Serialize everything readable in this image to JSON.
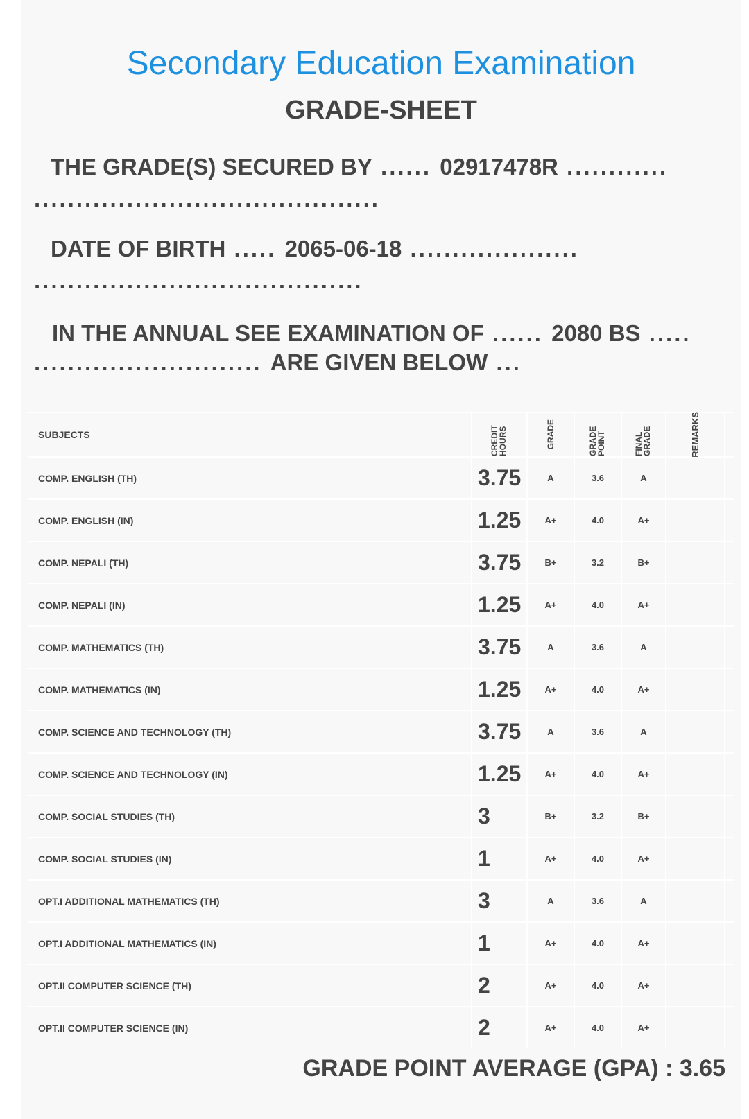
{
  "header": {
    "title": "Secondary Education Examination",
    "subtitle": "GRADE-SHEET"
  },
  "info": {
    "secured_by_label": "THE GRADE(S) SECURED BY",
    "secured_by_value": "02917478R",
    "dob_label": "DATE OF BIRTH",
    "dob_value": "2065-06-18",
    "exam_label": "IN THE ANNUAL SEE EXAMINATION OF",
    "exam_value": "2080 BS",
    "given_below": "ARE GIVEN BELOW"
  },
  "table": {
    "headers": {
      "subjects": "SUBJECTS",
      "credit_hours": "CREDIT HOURS",
      "grade": "GRADE",
      "grade_point": "GRADE POINT",
      "final_grade": "FINAL GRADE",
      "remarks": "REMARKS"
    },
    "rows": [
      {
        "subject": "COMP. ENGLISH (TH)",
        "credit": "3.75",
        "grade": "A",
        "gp": "3.6",
        "final": "A"
      },
      {
        "subject": "COMP. ENGLISH (IN)",
        "credit": "1.25",
        "grade": "A+",
        "gp": "4.0",
        "final": "A+"
      },
      {
        "subject": "COMP. NEPALI (TH)",
        "credit": "3.75",
        "grade": "B+",
        "gp": "3.2",
        "final": "B+"
      },
      {
        "subject": "COMP. NEPALI (IN)",
        "credit": "1.25",
        "grade": "A+",
        "gp": "4.0",
        "final": "A+"
      },
      {
        "subject": "COMP. MATHEMATICS (TH)",
        "credit": "3.75",
        "grade": "A",
        "gp": "3.6",
        "final": "A"
      },
      {
        "subject": "COMP. MATHEMATICS (IN)",
        "credit": "1.25",
        "grade": "A+",
        "gp": "4.0",
        "final": "A+"
      },
      {
        "subject": "COMP. SCIENCE AND TECHNOLOGY (TH)",
        "credit": "3.75",
        "grade": "A",
        "gp": "3.6",
        "final": "A"
      },
      {
        "subject": "COMP. SCIENCE AND TECHNOLOGY (IN)",
        "credit": "1.25",
        "grade": "A+",
        "gp": "4.0",
        "final": "A+"
      },
      {
        "subject": "COMP. SOCIAL STUDIES (TH)",
        "credit": "3",
        "grade": "B+",
        "gp": "3.2",
        "final": "B+"
      },
      {
        "subject": "COMP. SOCIAL STUDIES (IN)",
        "credit": "1",
        "grade": "A+",
        "gp": "4.0",
        "final": "A+"
      },
      {
        "subject": "OPT.I ADDITIONAL MATHEMATICS (TH)",
        "credit": "3",
        "grade": "A",
        "gp": "3.6",
        "final": "A"
      },
      {
        "subject": "OPT.I ADDITIONAL MATHEMATICS (IN)",
        "credit": "1",
        "grade": "A+",
        "gp": "4.0",
        "final": "A+"
      },
      {
        "subject": "OPT.II COMPUTER SCIENCE (TH)",
        "credit": "2",
        "grade": "A+",
        "gp": "4.0",
        "final": "A+"
      },
      {
        "subject": "OPT.II COMPUTER SCIENCE (IN)",
        "credit": "2",
        "grade": "A+",
        "gp": "4.0",
        "final": "A+"
      }
    ]
  },
  "gpa": {
    "label": "GRADE POINT AVERAGE (GPA) :",
    "value": "3.65"
  },
  "colors": {
    "title": "#1e90e0",
    "text": "#444444",
    "card": "#f8f8f8"
  }
}
